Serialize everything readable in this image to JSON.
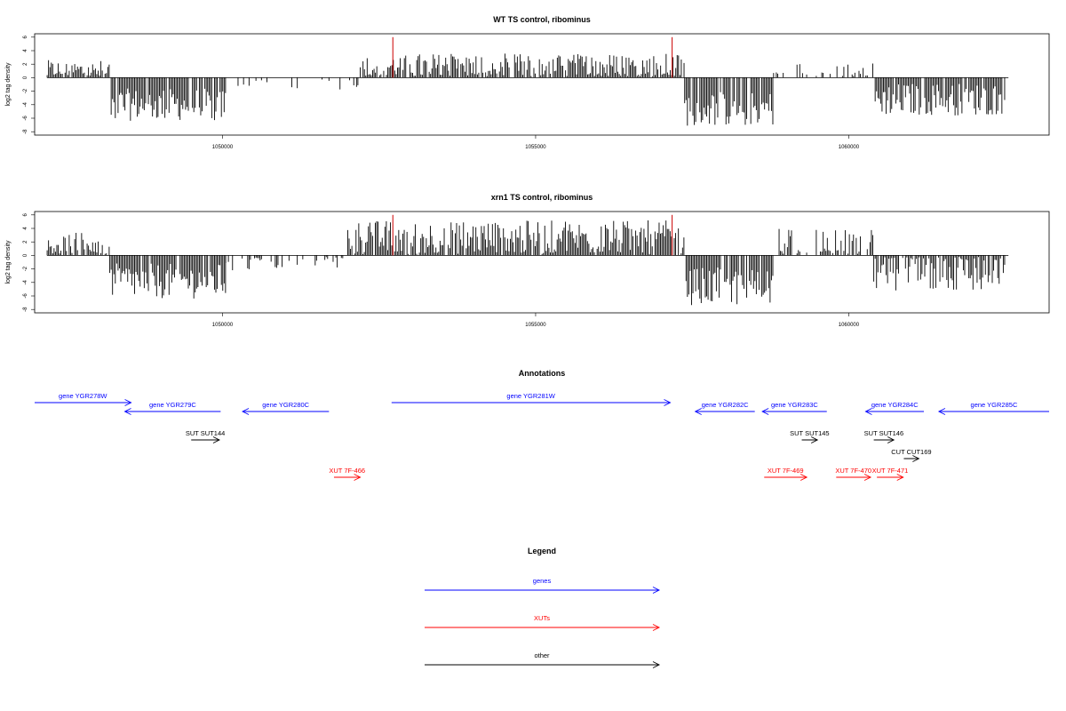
{
  "chart_data": [
    {
      "type": "bar",
      "title": "WT TS control, ribominus",
      "ylabel": "log2 tag density",
      "xlim": [
        1047000,
        1063200
      ],
      "ylim": [
        -8.5,
        6.5
      ],
      "yticks": [
        6,
        4,
        2,
        0,
        -2,
        -4,
        -6,
        -8
      ],
      "xticks": [
        1050000,
        1055000,
        1060000
      ],
      "axis_line_y": 0,
      "series_color": "#000000",
      "highlight_color": "#cc0000",
      "highlights": [
        {
          "x": 1052720,
          "y": 6.0
        },
        {
          "x": 1057180,
          "y": 6.0
        }
      ],
      "segments": [
        {
          "start": 1047200,
          "end": 1048200,
          "mean": 1.0,
          "amp": 1.6
        },
        {
          "start": 1048200,
          "end": 1050050,
          "mean": -4.0,
          "amp": 2.4
        },
        {
          "start": 1050050,
          "end": 1052200,
          "mean": -0.6,
          "amp": 1.2,
          "density": 0.12
        },
        {
          "start": 1052200,
          "end": 1057380,
          "mean": 1.6,
          "amp": 2.0
        },
        {
          "start": 1057380,
          "end": 1058800,
          "mean": -4.6,
          "amp": 2.6
        },
        {
          "start": 1058800,
          "end": 1060400,
          "mean": 0.4,
          "amp": 1.8,
          "density": 0.35
        },
        {
          "start": 1060400,
          "end": 1062500,
          "mean": -3.2,
          "amp": 2.4
        }
      ]
    },
    {
      "type": "bar",
      "title": "xrn1 TS control, ribominus",
      "ylabel": "log2 tag density",
      "xlim": [
        1047000,
        1063200
      ],
      "ylim": [
        -8.5,
        6.5
      ],
      "yticks": [
        6,
        4,
        2,
        0,
        -2,
        -4,
        -6,
        -8
      ],
      "xticks": [
        1050000,
        1055000,
        1060000
      ],
      "axis_line_y": 0,
      "series_color": "#000000",
      "highlight_color": "#cc0000",
      "highlights": [
        {
          "x": 1052720,
          "y": 6.0
        },
        {
          "x": 1057180,
          "y": 6.0
        }
      ],
      "segments": [
        {
          "start": 1047200,
          "end": 1048200,
          "mean": 1.6,
          "amp": 1.8
        },
        {
          "start": 1048200,
          "end": 1050050,
          "mean": -3.8,
          "amp": 2.6
        },
        {
          "start": 1050050,
          "end": 1052000,
          "mean": -0.8,
          "amp": 1.4,
          "density": 0.25
        },
        {
          "start": 1052000,
          "end": 1057380,
          "mean": 2.6,
          "amp": 2.6
        },
        {
          "start": 1057380,
          "end": 1058800,
          "mean": -4.6,
          "amp": 2.8
        },
        {
          "start": 1058800,
          "end": 1060400,
          "mean": 0.6,
          "amp": 3.4,
          "density": 0.6
        },
        {
          "start": 1060400,
          "end": 1062500,
          "mean": -2.6,
          "amp": 3.0
        }
      ]
    }
  ],
  "annotations": {
    "title": "Annotations",
    "features": [
      {
        "label": "gene YGR278W",
        "type": "gene",
        "strand": "+",
        "start": 1047000,
        "end": 1048540,
        "row": 0
      },
      {
        "label": "gene YGR279C",
        "type": "gene",
        "strand": "-",
        "start": 1048440,
        "end": 1049970,
        "row": 1
      },
      {
        "label": "gene YGR280C",
        "type": "gene",
        "strand": "-",
        "start": 1050320,
        "end": 1051700,
        "row": 1
      },
      {
        "label": "gene YGR281W",
        "type": "gene",
        "strand": "+",
        "start": 1052700,
        "end": 1057150,
        "row": 0
      },
      {
        "label": "gene YGR282C",
        "type": "gene",
        "strand": "-",
        "start": 1057550,
        "end": 1058500,
        "row": 1
      },
      {
        "label": "gene YGR283C",
        "type": "gene",
        "strand": "-",
        "start": 1058620,
        "end": 1059650,
        "row": 1
      },
      {
        "label": "gene YGR284C",
        "type": "gene",
        "strand": "-",
        "start": 1060270,
        "end": 1061200,
        "row": 1
      },
      {
        "label": "gene YGR285C",
        "type": "gene",
        "strand": "-",
        "start": 1061440,
        "end": 1063200,
        "row": 1
      },
      {
        "label": "SUT SUT144",
        "type": "other",
        "strand": "+",
        "start": 1049500,
        "end": 1049950,
        "row": 2
      },
      {
        "label": "SUT SUT145",
        "type": "other",
        "strand": "+",
        "start": 1059250,
        "end": 1059500,
        "row": 2
      },
      {
        "label": "SUT SUT146",
        "type": "other",
        "strand": "+",
        "start": 1060400,
        "end": 1060720,
        "row": 2
      },
      {
        "label": "CUT CUT169",
        "type": "other",
        "strand": "+",
        "start": 1060880,
        "end": 1061120,
        "row": 3
      },
      {
        "label": "XUT 7F-466",
        "type": "xut",
        "strand": "+",
        "start": 1051780,
        "end": 1052200,
        "row": 4
      },
      {
        "label": "XUT 7F-469",
        "type": "xut",
        "strand": "+",
        "start": 1058650,
        "end": 1059330,
        "row": 4
      },
      {
        "label": "XUT 7F-470",
        "type": "xut",
        "strand": "+",
        "start": 1059800,
        "end": 1060350,
        "row": 4
      },
      {
        "label": "XUT 7F-471",
        "type": "xut",
        "strand": "+",
        "start": 1060450,
        "end": 1060870,
        "row": 4
      }
    ]
  },
  "legend": {
    "title": "Legend",
    "items": [
      {
        "label": "genes",
        "color": "#0000ff"
      },
      {
        "label": "XUTs",
        "color": "#ff0000"
      },
      {
        "label": "other",
        "color": "#000000"
      }
    ]
  },
  "colors": {
    "gene": "#0000ff",
    "xut": "#ff0000",
    "other": "#000000",
    "axis": "#000000"
  }
}
